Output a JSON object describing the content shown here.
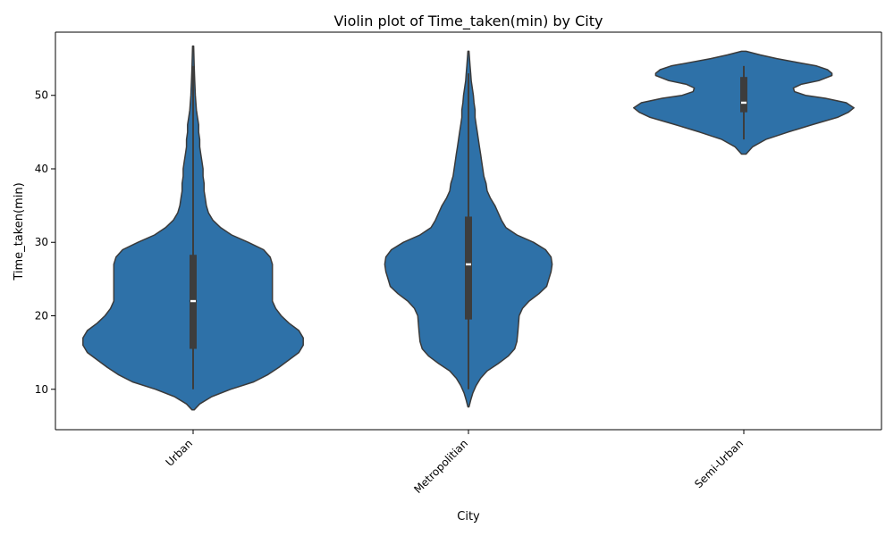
{
  "chart_data": {
    "type": "violin",
    "title": "Violin plot of Time_taken(min) by City",
    "xlabel": "City",
    "ylabel": "Time_taken(min)",
    "ylim": [
      4.5,
      58.6
    ],
    "yticks": [
      10,
      20,
      30,
      40,
      50
    ],
    "grid": false,
    "color": "#2e71a8",
    "categories": [
      "Urban",
      "Metropolitian",
      "Semi-Urban"
    ],
    "violins": [
      {
        "category": "Urban",
        "min": 10,
        "q1": 15.5,
        "median": 22,
        "q3": 28.3,
        "max": 54,
        "density": [
          [
            7.2,
            0.01
          ],
          [
            8,
            0.06
          ],
          [
            9,
            0.17
          ],
          [
            10,
            0.34
          ],
          [
            11,
            0.55
          ],
          [
            12,
            0.68
          ],
          [
            13,
            0.78
          ],
          [
            14,
            0.87
          ],
          [
            15,
            0.96
          ],
          [
            16,
            1.0
          ],
          [
            17,
            1.0
          ],
          [
            18,
            0.96
          ],
          [
            19,
            0.87
          ],
          [
            20,
            0.8
          ],
          [
            21,
            0.75
          ],
          [
            22,
            0.72
          ],
          [
            23,
            0.72
          ],
          [
            24,
            0.72
          ],
          [
            25,
            0.72
          ],
          [
            26,
            0.72
          ],
          [
            27,
            0.72
          ],
          [
            28,
            0.7
          ],
          [
            29,
            0.64
          ],
          [
            30,
            0.5
          ],
          [
            31,
            0.35
          ],
          [
            32,
            0.25
          ],
          [
            33,
            0.18
          ],
          [
            34,
            0.14
          ],
          [
            35,
            0.12
          ],
          [
            36,
            0.11
          ],
          [
            37,
            0.1
          ],
          [
            38,
            0.1
          ],
          [
            39,
            0.09
          ],
          [
            40,
            0.09
          ],
          [
            41,
            0.08
          ],
          [
            42,
            0.07
          ],
          [
            43,
            0.06
          ],
          [
            44,
            0.06
          ],
          [
            45,
            0.05
          ],
          [
            46,
            0.05
          ],
          [
            47,
            0.04
          ],
          [
            48,
            0.03
          ],
          [
            50,
            0.02
          ],
          [
            52,
            0.015
          ],
          [
            54,
            0.01
          ],
          [
            56.7,
            0.005
          ]
        ]
      },
      {
        "category": "Metropolitian",
        "min": 10,
        "q1": 19.5,
        "median": 27,
        "q3": 33.5,
        "max": 53,
        "density": [
          [
            7.6,
            0.005
          ],
          [
            8.5,
            0.02
          ],
          [
            9.5,
            0.04
          ],
          [
            10.5,
            0.07
          ],
          [
            11.5,
            0.11
          ],
          [
            12.5,
            0.17
          ],
          [
            13.5,
            0.27
          ],
          [
            14.5,
            0.36
          ],
          [
            15.5,
            0.42
          ],
          [
            16.5,
            0.44
          ],
          [
            18,
            0.45
          ],
          [
            20,
            0.46
          ],
          [
            21,
            0.49
          ],
          [
            22,
            0.55
          ],
          [
            23,
            0.64
          ],
          [
            24,
            0.71
          ],
          [
            25,
            0.73
          ],
          [
            26,
            0.75
          ],
          [
            27,
            0.76
          ],
          [
            28,
            0.75
          ],
          [
            29,
            0.7
          ],
          [
            30,
            0.59
          ],
          [
            31,
            0.44
          ],
          [
            32,
            0.34
          ],
          [
            33,
            0.3
          ],
          [
            34,
            0.27
          ],
          [
            35,
            0.24
          ],
          [
            36,
            0.2
          ],
          [
            37,
            0.17
          ],
          [
            38,
            0.16
          ],
          [
            39,
            0.14
          ],
          [
            40,
            0.13
          ],
          [
            41,
            0.12
          ],
          [
            42,
            0.11
          ],
          [
            43,
            0.1
          ],
          [
            44,
            0.09
          ],
          [
            45,
            0.08
          ],
          [
            46,
            0.07
          ],
          [
            47,
            0.06
          ],
          [
            48,
            0.06
          ],
          [
            49,
            0.05
          ],
          [
            50,
            0.045
          ],
          [
            51,
            0.035
          ],
          [
            52,
            0.025
          ],
          [
            53,
            0.02
          ],
          [
            54,
            0.015
          ],
          [
            56,
            0.005
          ]
        ]
      },
      {
        "category": "Semi-Urban",
        "min": 44,
        "q1": 47.7,
        "median": 49,
        "q3": 52.5,
        "max": 54,
        "density": [
          [
            42,
            0.02
          ],
          [
            43,
            0.08
          ],
          [
            44,
            0.2
          ],
          [
            45,
            0.4
          ],
          [
            46,
            0.62
          ],
          [
            47,
            0.85
          ],
          [
            47.7,
            0.95
          ],
          [
            48.3,
            1.0
          ],
          [
            49,
            0.93
          ],
          [
            49.6,
            0.74
          ],
          [
            50,
            0.56
          ],
          [
            50.5,
            0.46
          ],
          [
            51,
            0.45
          ],
          [
            51.5,
            0.52
          ],
          [
            52,
            0.68
          ],
          [
            52.7,
            0.8
          ],
          [
            53,
            0.8
          ],
          [
            53.5,
            0.76
          ],
          [
            54,
            0.66
          ],
          [
            54.5,
            0.48
          ],
          [
            55,
            0.3
          ],
          [
            55.5,
            0.15
          ],
          [
            56,
            0.02
          ]
        ]
      }
    ]
  }
}
